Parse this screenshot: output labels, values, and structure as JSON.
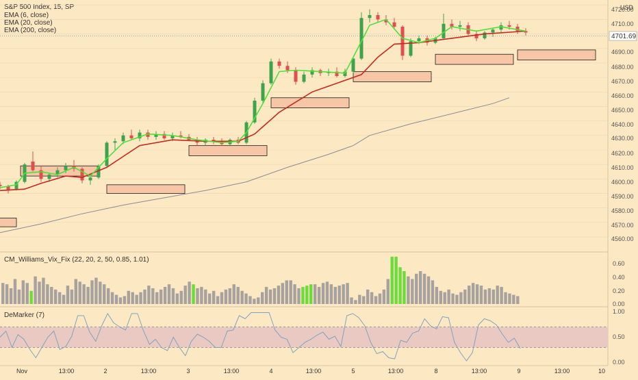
{
  "colors": {
    "background": "#fde8c4",
    "grid": "#ead6b3",
    "up_candle": "#3fa34d",
    "down_candle": "#e0504a",
    "ema_fast": "#4ee03a",
    "ema_slow": "#c8281e",
    "ema_long": "#8a8a96",
    "zone_fill": "#f6c6a6",
    "zone_stroke": "#1a1a1a",
    "vix_bar": "#a7a29e",
    "vix_highlight": "#6cdc3a",
    "demarker_line": "#7fa3c0",
    "demarker_band": "#e9c9c1",
    "price_label_bg": "#ffffff",
    "text": "#333333"
  },
  "legend": {
    "symbol": "S&P 500 Index, 15, SP",
    "ema6": "EMA (6, close)",
    "ema20": "EMA (20, close)",
    "ema200": "EMA (200, close)"
  },
  "price_axis": {
    "currency": "USD",
    "current_price": "4701.69",
    "ticks": [
      "4720.00",
      "4710.00",
      "4700.00",
      "4690.00",
      "4680.00",
      "4670.00",
      "4660.00",
      "4650.00",
      "4640.00",
      "4630.00",
      "4620.00",
      "4610.00",
      "4600.00",
      "4590.00",
      "4580.00",
      "4570.00",
      "4560.00"
    ]
  },
  "vix_panel": {
    "title": "CM_Williams_Vix_Fix (22, 20, 2, 50, 0.85, 1.01)",
    "ticks": [
      "0.60",
      "0.40",
      "0.20",
      "0.00"
    ]
  },
  "demarker_panel": {
    "title": "DeMarker (7)",
    "ticks": [
      "1.00",
      "0.50",
      "0.00"
    ]
  },
  "time_axis": {
    "labels": [
      "Nov",
      "13:00",
      "2",
      "13:00",
      "3",
      "13:00",
      "4",
      "13:00",
      "5",
      "13:00",
      "8",
      "13:00",
      "9",
      "13:00",
      "10"
    ]
  },
  "chart_data": {
    "type": "candlestick",
    "title": "S&P 500 Index, 15, SP",
    "ylim": [
      4552,
      4722
    ],
    "x_range": [
      0,
      148
    ],
    "candles": [
      {
        "x": 0,
        "o": 4596,
        "h": 4598,
        "l": 4593,
        "c": 4595
      },
      {
        "x": 2,
        "o": 4595,
        "h": 4596,
        "l": 4590,
        "c": 4592
      },
      {
        "x": 4,
        "o": 4593,
        "h": 4599,
        "l": 4592,
        "c": 4598
      },
      {
        "x": 6,
        "o": 4598,
        "h": 4611,
        "l": 4597,
        "c": 4610
      },
      {
        "x": 8,
        "o": 4612,
        "h": 4619,
        "l": 4605,
        "c": 4606
      },
      {
        "x": 10,
        "o": 4606,
        "h": 4609,
        "l": 4598,
        "c": 4600
      },
      {
        "x": 12,
        "o": 4600,
        "h": 4604,
        "l": 4598,
        "c": 4603
      },
      {
        "x": 14,
        "o": 4603,
        "h": 4608,
        "l": 4601,
        "c": 4606
      },
      {
        "x": 16,
        "o": 4606,
        "h": 4611,
        "l": 4604,
        "c": 4609
      },
      {
        "x": 18,
        "o": 4609,
        "h": 4613,
        "l": 4605,
        "c": 4607
      },
      {
        "x": 20,
        "o": 4607,
        "h": 4608,
        "l": 4597,
        "c": 4599
      },
      {
        "x": 22,
        "o": 4599,
        "h": 4603,
        "l": 4596,
        "c": 4601
      },
      {
        "x": 24,
        "o": 4601,
        "h": 4610,
        "l": 4600,
        "c": 4609
      },
      {
        "x": 26,
        "o": 4609,
        "h": 4626,
        "l": 4608,
        "c": 4625
      },
      {
        "x": 28,
        "o": 4625,
        "h": 4628,
        "l": 4620,
        "c": 4626
      },
      {
        "x": 30,
        "o": 4626,
        "h": 4632,
        "l": 4624,
        "c": 4630
      },
      {
        "x": 32,
        "o": 4630,
        "h": 4634,
        "l": 4627,
        "c": 4628
      },
      {
        "x": 34,
        "o": 4628,
        "h": 4634,
        "l": 4626,
        "c": 4632
      },
      {
        "x": 36,
        "o": 4632,
        "h": 4634,
        "l": 4627,
        "c": 4629
      },
      {
        "x": 38,
        "o": 4629,
        "h": 4633,
        "l": 4627,
        "c": 4631
      },
      {
        "x": 40,
        "o": 4631,
        "h": 4633,
        "l": 4627,
        "c": 4628
      },
      {
        "x": 42,
        "o": 4628,
        "h": 4632,
        "l": 4626,
        "c": 4630
      },
      {
        "x": 44,
        "o": 4630,
        "h": 4633,
        "l": 4628,
        "c": 4629
      },
      {
        "x": 46,
        "o": 4629,
        "h": 4631,
        "l": 4626,
        "c": 4627
      },
      {
        "x": 48,
        "o": 4627,
        "h": 4629,
        "l": 4623,
        "c": 4625
      },
      {
        "x": 50,
        "o": 4625,
        "h": 4628,
        "l": 4623,
        "c": 4627
      },
      {
        "x": 52,
        "o": 4627,
        "h": 4629,
        "l": 4624,
        "c": 4626
      },
      {
        "x": 54,
        "o": 4626,
        "h": 4628,
        "l": 4623,
        "c": 4624
      },
      {
        "x": 56,
        "o": 4624,
        "h": 4628,
        "l": 4623,
        "c": 4627
      },
      {
        "x": 58,
        "o": 4627,
        "h": 4629,
        "l": 4624,
        "c": 4625
      },
      {
        "x": 60,
        "o": 4625,
        "h": 4640,
        "l": 4624,
        "c": 4639
      },
      {
        "x": 62,
        "o": 4639,
        "h": 4656,
        "l": 4638,
        "c": 4654
      },
      {
        "x": 64,
        "o": 4654,
        "h": 4668,
        "l": 4652,
        "c": 4666
      },
      {
        "x": 66,
        "o": 4666,
        "h": 4683,
        "l": 4665,
        "c": 4681
      },
      {
        "x": 68,
        "o": 4681,
        "h": 4683,
        "l": 4676,
        "c": 4678
      },
      {
        "x": 70,
        "o": 4678,
        "h": 4681,
        "l": 4673,
        "c": 4675
      },
      {
        "x": 72,
        "o": 4675,
        "h": 4677,
        "l": 4665,
        "c": 4667
      },
      {
        "x": 74,
        "o": 4667,
        "h": 4674,
        "l": 4666,
        "c": 4672
      },
      {
        "x": 76,
        "o": 4672,
        "h": 4677,
        "l": 4670,
        "c": 4675
      },
      {
        "x": 78,
        "o": 4675,
        "h": 4676,
        "l": 4671,
        "c": 4673
      },
      {
        "x": 80,
        "o": 4673,
        "h": 4676,
        "l": 4671,
        "c": 4674
      },
      {
        "x": 82,
        "o": 4674,
        "h": 4677,
        "l": 4670,
        "c": 4671
      },
      {
        "x": 84,
        "o": 4671,
        "h": 4676,
        "l": 4670,
        "c": 4674
      },
      {
        "x": 86,
        "o": 4674,
        "h": 4684,
        "l": 4673,
        "c": 4683
      },
      {
        "x": 88,
        "o": 4683,
        "h": 4715,
        "l": 4682,
        "c": 4711
      },
      {
        "x": 90,
        "o": 4711,
        "h": 4717,
        "l": 4708,
        "c": 4713
      },
      {
        "x": 92,
        "o": 4713,
        "h": 4715,
        "l": 4708,
        "c": 4710
      },
      {
        "x": 94,
        "o": 4710,
        "h": 4713,
        "l": 4706,
        "c": 4708
      },
      {
        "x": 96,
        "o": 4708,
        "h": 4711,
        "l": 4703,
        "c": 4705
      },
      {
        "x": 98,
        "o": 4705,
        "h": 4706,
        "l": 4682,
        "c": 4685
      },
      {
        "x": 100,
        "o": 4685,
        "h": 4697,
        "l": 4684,
        "c": 4695
      },
      {
        "x": 102,
        "o": 4695,
        "h": 4699,
        "l": 4693,
        "c": 4697
      },
      {
        "x": 104,
        "o": 4697,
        "h": 4699,
        "l": 4692,
        "c": 4694
      },
      {
        "x": 106,
        "o": 4694,
        "h": 4698,
        "l": 4693,
        "c": 4697
      },
      {
        "x": 108,
        "o": 4697,
        "h": 4714,
        "l": 4696,
        "c": 4707
      },
      {
        "x": 110,
        "o": 4707,
        "h": 4710,
        "l": 4703,
        "c": 4705
      },
      {
        "x": 112,
        "o": 4705,
        "h": 4709,
        "l": 4702,
        "c": 4706
      },
      {
        "x": 114,
        "o": 4706,
        "h": 4708,
        "l": 4699,
        "c": 4700
      },
      {
        "x": 116,
        "o": 4700,
        "h": 4702,
        "l": 4695,
        "c": 4697
      },
      {
        "x": 118,
        "o": 4697,
        "h": 4702,
        "l": 4696,
        "c": 4701
      },
      {
        "x": 120,
        "o": 4701,
        "h": 4704,
        "l": 4698,
        "c": 4703
      },
      {
        "x": 122,
        "o": 4703,
        "h": 4708,
        "l": 4701,
        "c": 4706
      },
      {
        "x": 124,
        "o": 4706,
        "h": 4709,
        "l": 4703,
        "c": 4705
      },
      {
        "x": 126,
        "o": 4705,
        "h": 4707,
        "l": 4700,
        "c": 4702
      },
      {
        "x": 128,
        "o": 4702,
        "h": 4704,
        "l": 4699,
        "c": 4701
      }
    ],
    "ema6": [
      [
        0,
        4594
      ],
      [
        4,
        4596
      ],
      [
        6,
        4604
      ],
      [
        10,
        4605
      ],
      [
        14,
        4603
      ],
      [
        18,
        4608
      ],
      [
        22,
        4602
      ],
      [
        26,
        4614
      ],
      [
        30,
        4625
      ],
      [
        36,
        4631
      ],
      [
        42,
        4630
      ],
      [
        48,
        4627
      ],
      [
        54,
        4625
      ],
      [
        58,
        4626
      ],
      [
        60,
        4632
      ],
      [
        64,
        4652
      ],
      [
        68,
        4674
      ],
      [
        72,
        4675
      ],
      [
        78,
        4674
      ],
      [
        84,
        4673
      ],
      [
        88,
        4695
      ],
      [
        90,
        4706
      ],
      [
        94,
        4710
      ],
      [
        98,
        4697
      ],
      [
        102,
        4694
      ],
      [
        106,
        4697
      ],
      [
        110,
        4705
      ],
      [
        116,
        4702
      ],
      [
        122,
        4705
      ],
      [
        128,
        4702
      ]
    ],
    "ema20": [
      [
        0,
        4592
      ],
      [
        6,
        4593
      ],
      [
        10,
        4597
      ],
      [
        16,
        4602
      ],
      [
        20,
        4601
      ],
      [
        26,
        4608
      ],
      [
        34,
        4623
      ],
      [
        42,
        4627
      ],
      [
        50,
        4626
      ],
      [
        58,
        4626
      ],
      [
        62,
        4631
      ],
      [
        68,
        4646
      ],
      [
        76,
        4660
      ],
      [
        84,
        4668
      ],
      [
        88,
        4672
      ],
      [
        92,
        4684
      ],
      [
        96,
        4693
      ],
      [
        102,
        4694
      ],
      [
        110,
        4697
      ],
      [
        118,
        4700
      ],
      [
        128,
        4702
      ]
    ],
    "ema200": [
      [
        0,
        4563
      ],
      [
        10,
        4569
      ],
      [
        20,
        4576
      ],
      [
        30,
        4582
      ],
      [
        40,
        4587
      ],
      [
        50,
        4592
      ],
      [
        60,
        4598
      ],
      [
        70,
        4608
      ],
      [
        80,
        4617
      ],
      [
        86,
        4623
      ],
      [
        90,
        4630
      ],
      [
        100,
        4638
      ],
      [
        110,
        4645
      ],
      [
        120,
        4652
      ],
      [
        124,
        4656
      ]
    ],
    "zones": [
      {
        "x0": -2,
        "x1": 4,
        "y0": 4567,
        "y1": 4573
      },
      {
        "x0": 5,
        "x1": 24,
        "y0": 4602,
        "y1": 4609
      },
      {
        "x0": 26,
        "x1": 45,
        "y0": 4590,
        "y1": 4596
      },
      {
        "x0": 46,
        "x1": 65,
        "y0": 4616,
        "y1": 4623
      },
      {
        "x0": 66,
        "x1": 85,
        "y0": 4649,
        "y1": 4656
      },
      {
        "x0": 86,
        "x1": 105,
        "y0": 4667,
        "y1": 4674
      },
      {
        "x0": 106,
        "x1": 125,
        "y0": 4679,
        "y1": 4686
      },
      {
        "x0": 126,
        "x1": 145,
        "y0": 4682,
        "y1": 4689
      }
    ],
    "vix_values": [
      0.32,
      0.3,
      0.24,
      0.38,
      0.22,
      0.36,
      0.32,
      0.2,
      0.42,
      0.34,
      0.4,
      0.3,
      0.26,
      0.22,
      0.18,
      0.14,
      0.28,
      0.22,
      0.38,
      0.34,
      0.3,
      0.26,
      0.36,
      0.4,
      0.34,
      0.3,
      0.24,
      0.18,
      0.14,
      0.1,
      0.12,
      0.2,
      0.18,
      0.14,
      0.18,
      0.22,
      0.28,
      0.24,
      0.18,
      0.22,
      0.26,
      0.3,
      0.24,
      0.16,
      0.2,
      0.28,
      0.34,
      0.3,
      0.24,
      0.26,
      0.22,
      0.16,
      0.2,
      0.12,
      0.18,
      0.22,
      0.24,
      0.3,
      0.26,
      0.2,
      0.16,
      0.12,
      0.08,
      0.1,
      0.18,
      0.26,
      0.22,
      0.24,
      0.28,
      0.32,
      0.36,
      0.36,
      0.3,
      0.24,
      0.26,
      0.28,
      0.3,
      0.3,
      0.26,
      0.32,
      0.34,
      0.3,
      0.26,
      0.28,
      0.3,
      0.32,
      0.1,
      0.06,
      0.14,
      0.12,
      0.22,
      0.18,
      0.12,
      0.16,
      0.22,
      0.38,
      0.72,
      0.72,
      0.56,
      0.5,
      0.42,
      0.38,
      0.46,
      0.5,
      0.46,
      0.42,
      0.36,
      0.26,
      0.2,
      0.18,
      0.22,
      0.16,
      0.14,
      0.18,
      0.22,
      0.28,
      0.32,
      0.3,
      0.28,
      0.22,
      0.24,
      0.22,
      0.28,
      0.26,
      0.18,
      0.16,
      0.14,
      0.12
    ],
    "vix_highlight_indices": [
      7,
      47,
      74,
      75,
      76,
      96,
      97,
      98,
      99
    ],
    "vix_ylim": [
      0,
      0.75
    ],
    "demarker_values": [
      0.5,
      0.62,
      0.3,
      0.55,
      0.46,
      0.26,
      0.1,
      0.3,
      0.5,
      0.62,
      0.26,
      0.32,
      0.52,
      0.92,
      0.92,
      0.6,
      0.42,
      0.72,
      0.96,
      0.78,
      0.7,
      0.64,
      0.96,
      0.96,
      0.62,
      0.36,
      0.46,
      0.3,
      0.24,
      0.5,
      0.3,
      0.14,
      0.42,
      0.56,
      0.5,
      0.42,
      0.3,
      0.3,
      0.62,
      0.64,
      0.92,
      0.86,
      0.98,
      0.98,
      0.98,
      0.98,
      0.64,
      0.5,
      0.46,
      0.2,
      0.3,
      0.4,
      0.46,
      0.54,
      0.6,
      0.46,
      0.52,
      0.32,
      0.92,
      0.96,
      0.88,
      0.72,
      0.4,
      0.18,
      0.22,
      0.1,
      0.08,
      0.44,
      0.4,
      0.58,
      0.62,
      0.86,
      0.72,
      0.66,
      0.9,
      0.88,
      0.4,
      0.2,
      0.04,
      0.2,
      0.74,
      0.86,
      0.82,
      0.74,
      0.56,
      0.4,
      0.48,
      0.28
    ],
    "demarker_ylim": [
      0,
      1
    ],
    "demarker_band": [
      0.3,
      0.7
    ]
  }
}
